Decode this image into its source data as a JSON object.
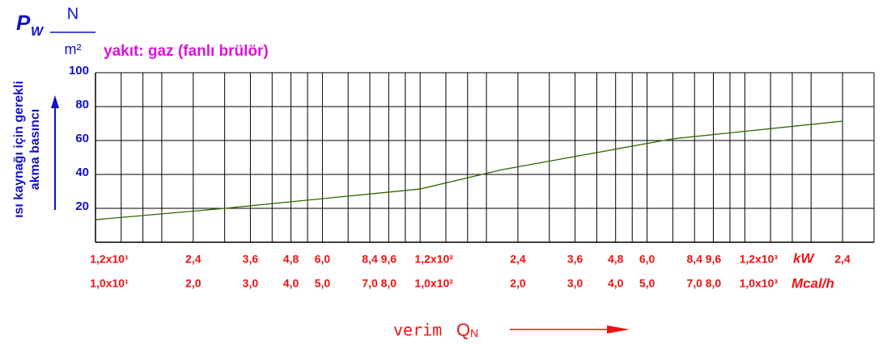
{
  "chart_data": {
    "type": "line",
    "symbol": "P",
    "symbol_sub": "W",
    "unit_num": "N",
    "unit_den": "m²",
    "subtitle": "yakıt: gaz (fanlı brülör)",
    "ylabel_lines": [
      "ısı kaynağı için gerekli",
      "akma basıncı"
    ],
    "xlabel": "verim",
    "xsymbol": "Q",
    "xsymbol_sub": "N",
    "x_unit": "Mcal/h",
    "x2_unit": "kW",
    "log_x": true,
    "xlim": [
      10,
      2500
    ],
    "x2lim": [
      12,
      3000
    ],
    "ylim": [
      0,
      100
    ],
    "yticks": [
      20,
      40,
      60,
      80,
      100
    ],
    "x_grid": [
      10,
      12,
      14,
      16,
      20,
      25,
      30,
      35,
      40,
      45,
      50,
      60,
      70,
      80,
      90,
      100,
      120,
      140,
      160,
      200,
      250,
      300,
      350,
      400,
      450,
      500,
      600,
      700,
      800,
      900,
      1000,
      1200,
      1400,
      1600,
      2000,
      2500
    ],
    "xticks": [
      {
        "value": 10,
        "label": "1,0x10¹"
      },
      {
        "value": 20,
        "label": "2,0"
      },
      {
        "value": 30,
        "label": "3,0"
      },
      {
        "value": 40,
        "label": "4,0"
      },
      {
        "value": 50,
        "label": "5,0"
      },
      {
        "value": 70,
        "label": "7,0"
      },
      {
        "value": 80,
        "label": "8,0"
      },
      {
        "value": 100,
        "label": "1,0x10²"
      },
      {
        "value": 200,
        "label": "2,0"
      },
      {
        "value": 300,
        "label": "3,0"
      },
      {
        "value": 400,
        "label": "4,0"
      },
      {
        "value": 500,
        "label": "5,0"
      },
      {
        "value": 700,
        "label": "7,0"
      },
      {
        "value": 800,
        "label": "8,0"
      },
      {
        "value": 1000,
        "label": "1,0x10³"
      }
    ],
    "x2ticks": [
      {
        "value": 12,
        "label": "1,2x10¹"
      },
      {
        "value": 24,
        "label": "2,4"
      },
      {
        "value": 36,
        "label": "3,6"
      },
      {
        "value": 48,
        "label": "4,8"
      },
      {
        "value": 60,
        "label": "6,0"
      },
      {
        "value": 84,
        "label": "8,4"
      },
      {
        "value": 96,
        "label": "9,6"
      },
      {
        "value": 120,
        "label": "1,2x10²"
      },
      {
        "value": 240,
        "label": "2,4"
      },
      {
        "value": 360,
        "label": "3,6"
      },
      {
        "value": 480,
        "label": "4,8"
      },
      {
        "value": 600,
        "label": "6,0"
      },
      {
        "value": 840,
        "label": "8,4"
      },
      {
        "value": 960,
        "label": "9,6"
      },
      {
        "value": 1200,
        "label": "1,2x10³"
      },
      {
        "value": 2400,
        "label": "2,4"
      }
    ],
    "x": [
      10,
      25,
      100,
      180,
      600,
      2000
    ],
    "series": [
      {
        "color": "#336600",
        "values": [
          13.3,
          20,
          31.4,
          42.9,
          61,
          71.4
        ]
      }
    ]
  }
}
